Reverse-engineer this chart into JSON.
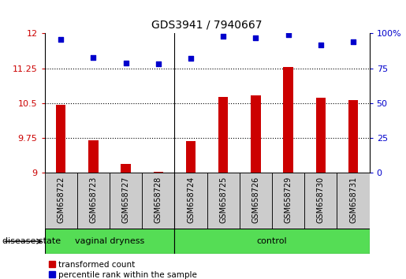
{
  "title": "GDS3941 / 7940667",
  "samples": [
    "GSM658722",
    "GSM658723",
    "GSM658727",
    "GSM658728",
    "GSM658724",
    "GSM658725",
    "GSM658726",
    "GSM658729",
    "GSM658730",
    "GSM658731"
  ],
  "bar_values": [
    10.47,
    9.7,
    9.2,
    9.03,
    9.68,
    10.63,
    10.67,
    11.28,
    10.62,
    10.57
  ],
  "dot_values": [
    96,
    83,
    79,
    78,
    82,
    98,
    97,
    99,
    92,
    94
  ],
  "groups": [
    {
      "label": "vaginal dryness",
      "start": 0,
      "end": 4
    },
    {
      "label": "control",
      "start": 4,
      "end": 10
    }
  ],
  "bar_color": "#CC0000",
  "dot_color": "#0000CC",
  "green_color": "#55DD55",
  "gray_color": "#CCCCCC",
  "ylim_left": [
    9,
    12
  ],
  "ylim_right": [
    0,
    100
  ],
  "yticks_left": [
    9,
    9.75,
    10.5,
    11.25,
    12
  ],
  "yticks_right": [
    0,
    25,
    50,
    75,
    100
  ],
  "hlines": [
    9.75,
    10.5,
    11.25
  ],
  "left_tick_color": "#CC0000",
  "right_tick_color": "#0000CC",
  "legend_bar_label": "transformed count",
  "legend_dot_label": "percentile rank within the sample",
  "disease_state_label": "disease state",
  "figsize": [
    5.15,
    3.54
  ],
  "dpi": 100
}
